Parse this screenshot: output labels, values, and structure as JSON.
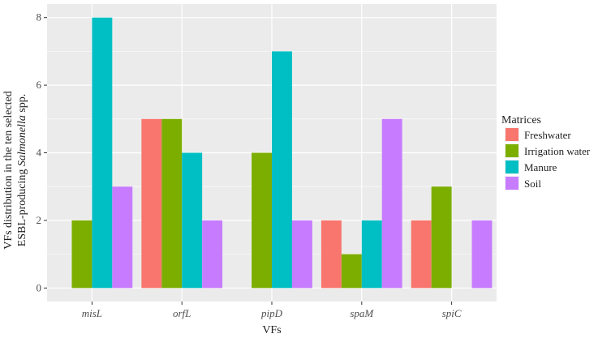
{
  "chart_data": {
    "type": "bar",
    "categories": [
      "misL",
      "orfL",
      "pipD",
      "spaM",
      "spiC"
    ],
    "series": [
      {
        "name": "Freshwater",
        "color": "#F8766D",
        "values": [
          0,
          5,
          0,
          2,
          2
        ]
      },
      {
        "name": "Irrigation water",
        "color": "#7CAE00",
        "values": [
          2,
          5,
          4,
          1,
          3
        ]
      },
      {
        "name": "Manure",
        "color": "#00BFC4",
        "values": [
          8,
          4,
          7,
          2,
          0
        ]
      },
      {
        "name": "Soil",
        "color": "#C77CFF",
        "values": [
          3,
          2,
          2,
          5,
          2
        ]
      }
    ],
    "xlabel": "VFs",
    "ylabel_line1": "VFs distribution in the ten selected",
    "ylabel_line2_prefix": "ESBL-producing ",
    "ylabel_line2_italic": "Salmonella",
    "ylabel_line2_suffix": " spp.",
    "yticks": [
      0,
      2,
      4,
      6,
      8
    ],
    "ylim": [
      -0.4,
      8.4
    ],
    "grid": true,
    "legend_title": "Matrices",
    "legend_position": "right",
    "panel_background": "#EBEBEB",
    "grid_color": "#FFFFFF"
  }
}
